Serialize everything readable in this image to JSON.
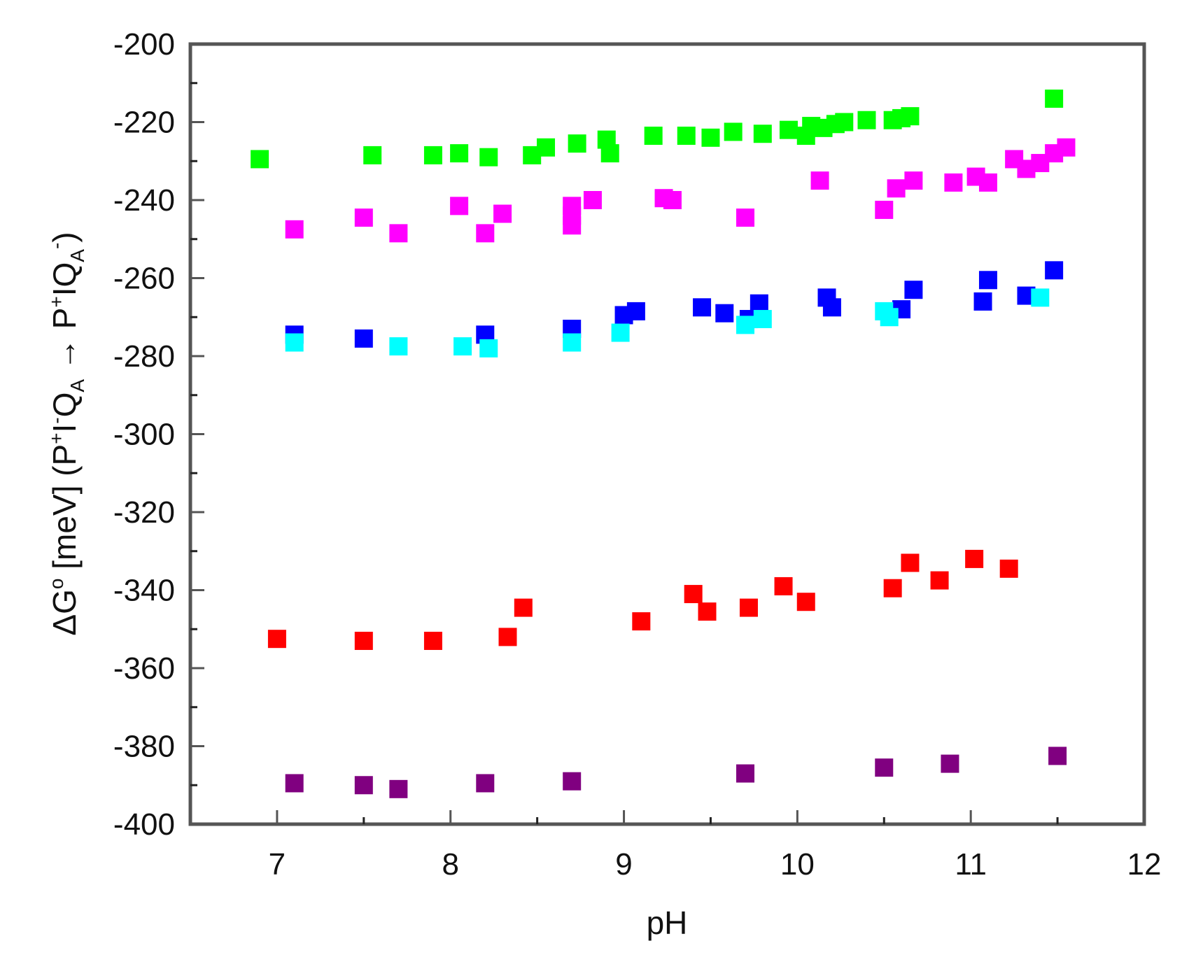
{
  "chart_data": {
    "type": "scatter",
    "title": "",
    "xlabel": "pH",
    "ylabel": "ΔG° [meV] (P⁺I⁻Q_A → P⁺IQ_A⁻)",
    "ylabel_parts": {
      "main": "ΔG",
      "main_sup": "o",
      "unit": " [meV] (P",
      "s1": "+",
      "t1": "I",
      "s2": "-",
      "t2": "Q",
      "sub1": "A",
      "arrow": " → P",
      "s3": "+",
      "t3": "IQ",
      "sub2": "A",
      "s4": "-",
      "close": ")"
    },
    "xlim": [
      6.5,
      12
    ],
    "ylim": [
      -400,
      -200
    ],
    "xticks": [
      7,
      8,
      9,
      10,
      11,
      12
    ],
    "yticks": [
      -200,
      -220,
      -240,
      -260,
      -280,
      -300,
      -320,
      -340,
      -360,
      -380,
      -400
    ],
    "grid": false,
    "legend": null,
    "marker": "square",
    "series": [
      {
        "name": "green",
        "color": "#00ff00",
        "points": [
          [
            6.9,
            -229.5
          ],
          [
            7.55,
            -228.5
          ],
          [
            7.9,
            -228.5
          ],
          [
            8.05,
            -228
          ],
          [
            8.22,
            -229
          ],
          [
            8.47,
            -228.5
          ],
          [
            8.55,
            -226.5
          ],
          [
            8.73,
            -225.5
          ],
          [
            8.9,
            -224.5
          ],
          [
            8.92,
            -228
          ],
          [
            9.17,
            -223.5
          ],
          [
            9.36,
            -223.5
          ],
          [
            9.5,
            -224
          ],
          [
            9.63,
            -222.5
          ],
          [
            9.8,
            -223
          ],
          [
            9.95,
            -222
          ],
          [
            10.05,
            -223.5
          ],
          [
            10.08,
            -221
          ],
          [
            10.15,
            -221.5
          ],
          [
            10.22,
            -220.5
          ],
          [
            10.27,
            -220
          ],
          [
            10.4,
            -219.5
          ],
          [
            10.55,
            -219.5
          ],
          [
            10.6,
            -219
          ],
          [
            10.65,
            -218.5
          ],
          [
            11.48,
            -214
          ]
        ]
      },
      {
        "name": "magenta",
        "color": "#ff00ff",
        "points": [
          [
            7.1,
            -247.5
          ],
          [
            7.5,
            -244.5
          ],
          [
            7.7,
            -248.5
          ],
          [
            8.05,
            -241.5
          ],
          [
            8.2,
            -248.5
          ],
          [
            8.3,
            -243.5
          ],
          [
            8.7,
            -241.5
          ],
          [
            8.7,
            -244
          ],
          [
            8.7,
            -246.5
          ],
          [
            8.82,
            -240
          ],
          [
            9.23,
            -239.5
          ],
          [
            9.28,
            -240
          ],
          [
            9.7,
            -244.5
          ],
          [
            10.13,
            -235
          ],
          [
            10.5,
            -242.5
          ],
          [
            10.57,
            -237
          ],
          [
            10.67,
            -235
          ],
          [
            10.9,
            -235.5
          ],
          [
            11.03,
            -234
          ],
          [
            11.1,
            -235.5
          ],
          [
            11.25,
            -229.5
          ],
          [
            11.32,
            -232
          ],
          [
            11.4,
            -230.5
          ],
          [
            11.48,
            -228
          ],
          [
            11.55,
            -226.5
          ]
        ]
      },
      {
        "name": "blue",
        "color": "#0000ff",
        "points": [
          [
            7.1,
            -274.5
          ],
          [
            7.5,
            -275.5
          ],
          [
            8.2,
            -274.5
          ],
          [
            8.7,
            -273
          ],
          [
            9.0,
            -269.5
          ],
          [
            9.07,
            -268.5
          ],
          [
            9.45,
            -267.5
          ],
          [
            9.58,
            -269
          ],
          [
            9.72,
            -270.5
          ],
          [
            9.78,
            -266.5
          ],
          [
            10.17,
            -265
          ],
          [
            10.2,
            -267.5
          ],
          [
            10.6,
            -268
          ],
          [
            10.67,
            -263
          ],
          [
            11.07,
            -266
          ],
          [
            11.1,
            -260.5
          ],
          [
            11.32,
            -264.5
          ],
          [
            11.48,
            -258
          ]
        ]
      },
      {
        "name": "cyan",
        "color": "#00ffff",
        "points": [
          [
            7.1,
            -276.5
          ],
          [
            7.7,
            -277.5
          ],
          [
            8.07,
            -277.5
          ],
          [
            8.22,
            -278
          ],
          [
            8.7,
            -276.5
          ],
          [
            8.98,
            -274
          ],
          [
            9.7,
            -272
          ],
          [
            9.8,
            -270.5
          ],
          [
            10.5,
            -268.5
          ],
          [
            10.53,
            -270
          ],
          [
            11.4,
            -265
          ]
        ]
      },
      {
        "name": "red",
        "color": "#ff0000",
        "points": [
          [
            7.0,
            -352.5
          ],
          [
            7.5,
            -353
          ],
          [
            7.9,
            -353
          ],
          [
            8.33,
            -352
          ],
          [
            8.42,
            -344.5
          ],
          [
            9.1,
            -348
          ],
          [
            9.4,
            -341
          ],
          [
            9.48,
            -345.5
          ],
          [
            9.72,
            -344.5
          ],
          [
            9.92,
            -339
          ],
          [
            10.05,
            -343
          ],
          [
            10.55,
            -339.5
          ],
          [
            10.65,
            -333
          ],
          [
            10.82,
            -337.5
          ],
          [
            11.02,
            -332
          ],
          [
            11.22,
            -334.5
          ]
        ]
      },
      {
        "name": "purple",
        "color": "#800080",
        "points": [
          [
            7.1,
            -389.5
          ],
          [
            7.5,
            -390
          ],
          [
            7.7,
            -391
          ],
          [
            8.2,
            -389.5
          ],
          [
            8.7,
            -389
          ],
          [
            9.7,
            -387
          ],
          [
            10.5,
            -385.5
          ],
          [
            10.88,
            -384.5
          ],
          [
            11.5,
            -382.5
          ]
        ]
      }
    ]
  },
  "colors": {
    "axis": "#555555",
    "text": "#111111",
    "background": "#ffffff"
  }
}
